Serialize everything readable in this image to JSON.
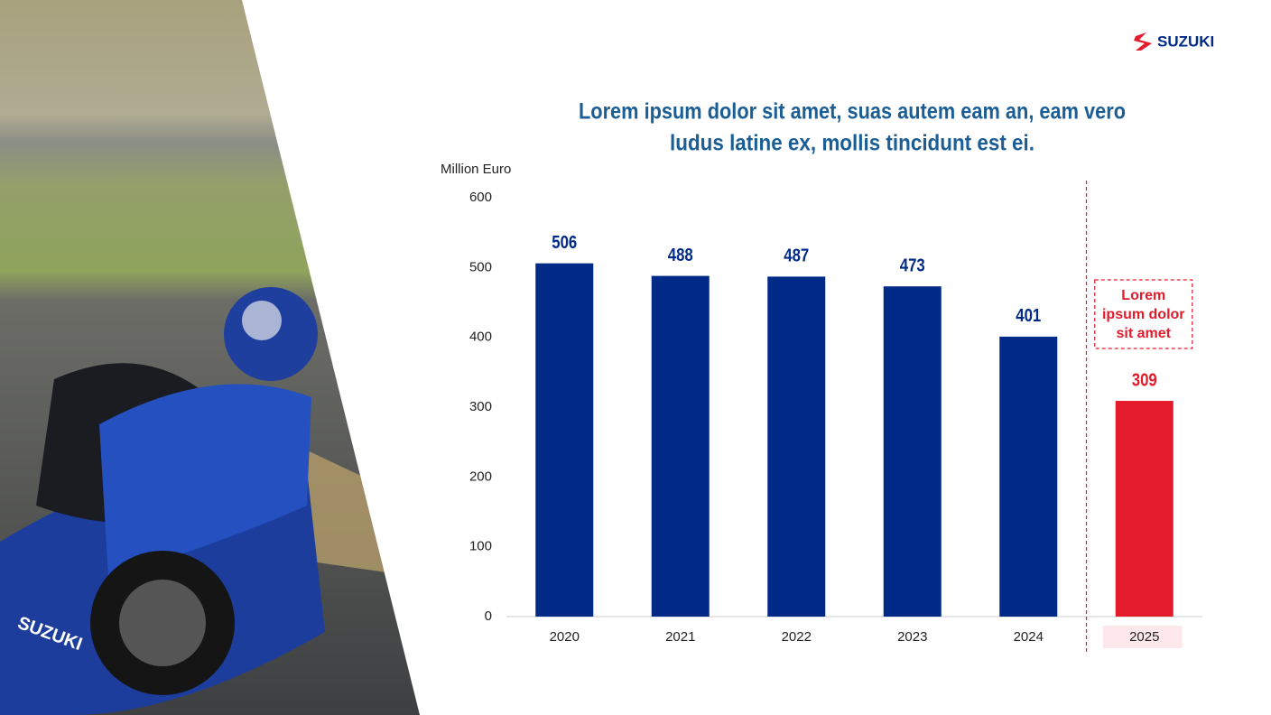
{
  "logo": "SUZUKI",
  "chart_data": {
    "type": "bar",
    "title": [
      "Lorem ipsum dolor sit amet, suas autem eam an, eam vero",
      "ludus latine ex, mollis tincidunt est ei."
    ],
    "y_label": "Million Euro",
    "categories": [
      "2020",
      "2021",
      "2022",
      "2023",
      "2024",
      "2025"
    ],
    "values": [
      506,
      488,
      487,
      473,
      401,
      309
    ],
    "colors": [
      "#002a87",
      "#002a87",
      "#002a87",
      "#002a87",
      "#002a87",
      "#e31b2b"
    ],
    "ylim": [
      0,
      600
    ],
    "yticks": [
      0,
      100,
      200,
      300,
      400,
      500,
      600
    ],
    "grid": false,
    "annotation": [
      "Lorem",
      "ipsum dolor",
      "sit amet"
    ]
  }
}
